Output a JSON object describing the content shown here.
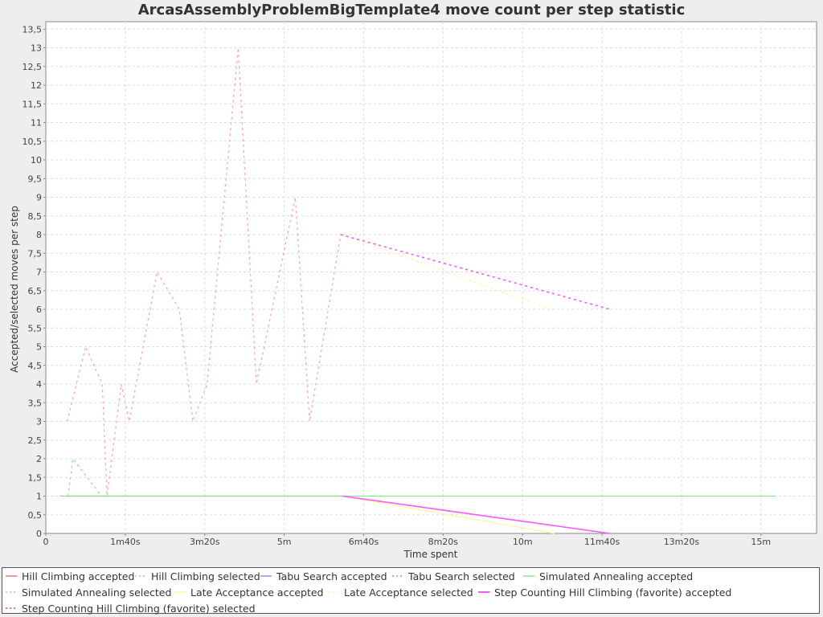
{
  "chart_data": {
    "type": "line",
    "title": "ArcasAssemblyProblemBigTemplate4 move count per step statistic",
    "xlabel": "Time spent",
    "ylabel": "Accepted/selected moves per step",
    "xlim": [
      0,
      970
    ],
    "ylim": [
      0,
      13.7
    ],
    "x_unit": "seconds",
    "x_ticks": [
      {
        "value": 0,
        "label": "0"
      },
      {
        "value": 100,
        "label": "1m40s"
      },
      {
        "value": 200,
        "label": "3m20s"
      },
      {
        "value": 300,
        "label": "5m"
      },
      {
        "value": 400,
        "label": "6m40s"
      },
      {
        "value": 500,
        "label": "8m20s"
      },
      {
        "value": 600,
        "label": "10m"
      },
      {
        "value": 700,
        "label": "11m40s"
      },
      {
        "value": 800,
        "label": "13m20s"
      },
      {
        "value": 900,
        "label": "15m"
      }
    ],
    "y_ticks": [
      {
        "value": 0,
        "label": "0"
      },
      {
        "value": 0.5,
        "label": "0,5"
      },
      {
        "value": 1,
        "label": "1"
      },
      {
        "value": 1.5,
        "label": "1,5"
      },
      {
        "value": 2,
        "label": "2"
      },
      {
        "value": 2.5,
        "label": "2,5"
      },
      {
        "value": 3,
        "label": "3"
      },
      {
        "value": 3.5,
        "label": "3,5"
      },
      {
        "value": 4,
        "label": "4"
      },
      {
        "value": 4.5,
        "label": "4,5"
      },
      {
        "value": 5,
        "label": "5"
      },
      {
        "value": 5.5,
        "label": "5,5"
      },
      {
        "value": 6,
        "label": "6"
      },
      {
        "value": 6.5,
        "label": "6,5"
      },
      {
        "value": 7,
        "label": "7"
      },
      {
        "value": 7.5,
        "label": "7,5"
      },
      {
        "value": 8,
        "label": "8"
      },
      {
        "value": 8.5,
        "label": "8,5"
      },
      {
        "value": 9,
        "label": "9"
      },
      {
        "value": 9.5,
        "label": "9,5"
      },
      {
        "value": 10,
        "label": "10"
      },
      {
        "value": 10.5,
        "label": "10,5"
      },
      {
        "value": 11,
        "label": "11"
      },
      {
        "value": 11.5,
        "label": "11,5"
      },
      {
        "value": 12,
        "label": "12"
      },
      {
        "value": 12.5,
        "label": "12,5"
      },
      {
        "value": 13,
        "label": "13"
      },
      {
        "value": 13.5,
        "label": "13,5"
      }
    ],
    "grid": true,
    "legend_position": "bottom",
    "series": [
      {
        "name": "Hill Climbing accepted",
        "color": "#ff6f6f",
        "dashed": false,
        "points": [
          [
            25,
            1
          ],
          [
            373,
            1
          ]
        ]
      },
      {
        "name": "Hill Climbing selected",
        "color": "#ffa0b8",
        "dashed": true,
        "points": [
          [
            27,
            3
          ],
          [
            50,
            5
          ],
          [
            71,
            4
          ],
          [
            77,
            1
          ],
          [
            95,
            4
          ],
          [
            105,
            3
          ],
          [
            140,
            7
          ],
          [
            168,
            6
          ],
          [
            185,
            3
          ],
          [
            203,
            4
          ],
          [
            242,
            13
          ],
          [
            265,
            4
          ],
          [
            314,
            9
          ],
          [
            332,
            3
          ],
          [
            371,
            8
          ]
        ]
      },
      {
        "name": "Tabu Search accepted",
        "color": "#8f8fff",
        "dashed": false,
        "points": []
      },
      {
        "name": "Tabu Search selected",
        "color": "#8f8fff",
        "dashed": true,
        "points": []
      },
      {
        "name": "Simulated Annealing accepted",
        "color": "#86e886",
        "dashed": false,
        "points": [
          [
            17,
            1
          ],
          [
            918,
            1
          ]
        ]
      },
      {
        "name": "Simulated Annealing selected",
        "color": "#86e886",
        "dashed": true,
        "points": [
          [
            28,
            1
          ],
          [
            34,
            2
          ],
          [
            70,
            1
          ]
        ]
      },
      {
        "name": "Late Acceptance accepted",
        "color": "#f8f8a0",
        "dashed": false,
        "points": [
          [
            373,
            1
          ],
          [
            640,
            0
          ]
        ]
      },
      {
        "name": "Late Acceptance selected",
        "color": "#f8f8a0",
        "dashed": true,
        "points": [
          [
            373,
            8
          ],
          [
            635,
            6
          ]
        ]
      },
      {
        "name": "Step Counting Hill Climbing (favorite) accepted",
        "color": "#ff55ff",
        "dashed": false,
        "points": [
          [
            373,
            1
          ],
          [
            710,
            0
          ]
        ]
      },
      {
        "name": "Step Counting Hill Climbing (favorite) selected",
        "color": "#ff55ff",
        "dashed": true,
        "points": [
          [
            371,
            8
          ],
          [
            710,
            6
          ]
        ]
      }
    ]
  }
}
